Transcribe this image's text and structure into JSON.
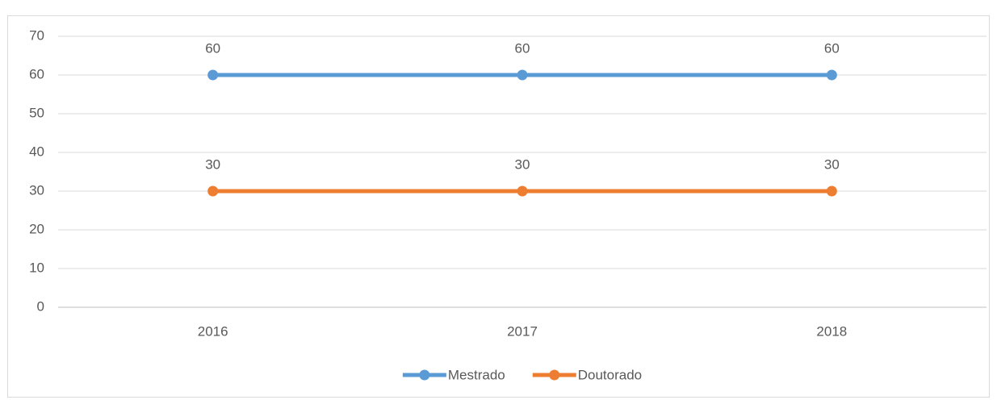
{
  "chart_data": {
    "type": "line",
    "categories": [
      "2016",
      "2017",
      "2018"
    ],
    "series": [
      {
        "name": "Mestrado",
        "color": "#5b9bd5",
        "values": [
          60,
          60,
          60
        ]
      },
      {
        "name": "Doutorado",
        "color": "#ed7d31",
        "values": [
          30,
          30,
          30
        ]
      }
    ],
    "ylim": [
      0,
      70
    ],
    "yticks": [
      0,
      10,
      20,
      30,
      40,
      50,
      60,
      70
    ],
    "grid": true,
    "legend": "bottom",
    "data_labels": true
  }
}
